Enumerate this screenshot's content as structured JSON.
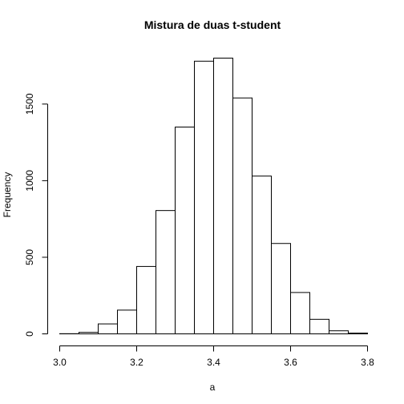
{
  "chart_data": {
    "type": "bar",
    "title": "Mistura de duas t-student",
    "xlabel": "a",
    "ylabel": "Frequency",
    "xlim": [
      3.0,
      3.8
    ],
    "ylim": [
      0,
      1800
    ],
    "xticks": [
      "3.0",
      "3.2",
      "3.4",
      "3.6",
      "3.8"
    ],
    "yticks": [
      "0",
      "500",
      "1000",
      "1500"
    ],
    "grid": false,
    "legend": "none",
    "bins": [
      {
        "start": 3.0,
        "end": 3.05,
        "count": 1
      },
      {
        "start": 3.05,
        "end": 3.1,
        "count": 10
      },
      {
        "start": 3.1,
        "end": 3.15,
        "count": 65
      },
      {
        "start": 3.15,
        "end": 3.2,
        "count": 155
      },
      {
        "start": 3.2,
        "end": 3.25,
        "count": 440
      },
      {
        "start": 3.25,
        "end": 3.3,
        "count": 805
      },
      {
        "start": 3.3,
        "end": 3.35,
        "count": 1350
      },
      {
        "start": 3.35,
        "end": 3.4,
        "count": 1780
      },
      {
        "start": 3.4,
        "end": 3.45,
        "count": 1800
      },
      {
        "start": 3.45,
        "end": 3.5,
        "count": 1540
      },
      {
        "start": 3.5,
        "end": 3.55,
        "count": 1030
      },
      {
        "start": 3.55,
        "end": 3.6,
        "count": 590
      },
      {
        "start": 3.6,
        "end": 3.65,
        "count": 270
      },
      {
        "start": 3.65,
        "end": 3.7,
        "count": 95
      },
      {
        "start": 3.7,
        "end": 3.75,
        "count": 20
      },
      {
        "start": 3.75,
        "end": 3.8,
        "count": 5
      }
    ]
  }
}
